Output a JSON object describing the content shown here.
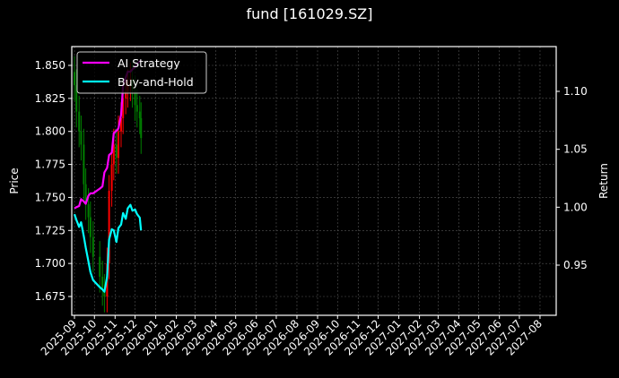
{
  "title": "fund [161029.SZ]",
  "colors": {
    "background": "#000000",
    "ai_strategy": "#ff00ff",
    "buy_and_hold": "#00ffff",
    "candle_up": "#ff0000",
    "candle_down": "#008000",
    "grid": "#555555",
    "axis": "#ffffff"
  },
  "legend": {
    "items": [
      {
        "label": "AI Strategy",
        "color": "#ff00ff"
      },
      {
        "label": "Buy-and-Hold",
        "color": "#00ffff"
      }
    ],
    "position": "upper left"
  },
  "chart_data": {
    "type": "line",
    "title": "fund [161029.SZ]",
    "xlabel": "",
    "ylabel": "Price",
    "y2label": "Return",
    "ylim": [
      1.661,
      1.864
    ],
    "y2lim": [
      0.909,
      1.138
    ],
    "grid": true,
    "legend_position": "upper left",
    "x_tick_labels": [
      "2025-09",
      "2025-10",
      "2025-11",
      "2025-12",
      "2026-01",
      "2026-02",
      "2026-03",
      "2026-04",
      "2026-05",
      "2026-06",
      "2026-07",
      "2026-08",
      "2026-09",
      "2026-10",
      "2026-11",
      "2026-12",
      "2027-01",
      "2027-02",
      "2027-03",
      "2027-04",
      "2027-05",
      "2027-06",
      "2027-07",
      "2027-08"
    ],
    "y_ticks": [
      1.675,
      1.7,
      1.725,
      1.75,
      1.775,
      1.8,
      1.825,
      1.85
    ],
    "y2_ticks": [
      0.95,
      1.0,
      1.05,
      1.1
    ],
    "x": [
      "2025-09-01",
      "2025-09-04",
      "2025-09-08",
      "2025-09-11",
      "2025-09-15",
      "2025-09-18",
      "2025-09-22",
      "2025-09-25",
      "2025-09-29",
      "2025-10-09",
      "2025-10-13",
      "2025-10-16",
      "2025-10-20",
      "2025-10-23",
      "2025-10-27",
      "2025-10-30",
      "2025-11-03",
      "2025-11-06",
      "2025-11-10",
      "2025-11-13",
      "2025-11-17",
      "2025-11-20",
      "2025-11-24",
      "2025-11-27",
      "2025-12-01",
      "2025-12-04",
      "2025-12-08",
      "2025-12-10"
    ],
    "series": [
      {
        "name": "AI Strategy",
        "axis": "right",
        "values": [
          0.999,
          1.0,
          1.001,
          1.007,
          1.005,
          1.003,
          1.01,
          1.012,
          1.012,
          1.016,
          1.018,
          1.03,
          1.034,
          1.045,
          1.047,
          1.064,
          1.066,
          1.068,
          1.08,
          1.105,
          1.112,
          1.117,
          1.117,
          1.119,
          1.121,
          1.124,
          1.126,
          1.127
        ]
      },
      {
        "name": "Buy-and-Hold",
        "axis": "right",
        "values": [
          0.994,
          0.989,
          0.983,
          0.987,
          0.975,
          0.965,
          0.953,
          0.944,
          0.937,
          0.931,
          0.929,
          0.927,
          0.94,
          0.972,
          0.981,
          0.98,
          0.97,
          0.982,
          0.985,
          0.995,
          0.99,
          0.999,
          1.002,
          0.997,
          0.998,
          0.994,
          0.991,
          0.98
        ]
      },
      {
        "name": "Price (candle close)",
        "axis": "left",
        "values": [
          1.835,
          1.815,
          1.8,
          1.79,
          1.76,
          1.745,
          1.735,
          1.72,
          1.705,
          1.69,
          1.68,
          1.675,
          1.7,
          1.755,
          1.775,
          1.79,
          1.78,
          1.8,
          1.81,
          1.825,
          1.83,
          1.835,
          1.84,
          1.83,
          1.82,
          1.815,
          1.81,
          1.795
        ]
      }
    ]
  }
}
